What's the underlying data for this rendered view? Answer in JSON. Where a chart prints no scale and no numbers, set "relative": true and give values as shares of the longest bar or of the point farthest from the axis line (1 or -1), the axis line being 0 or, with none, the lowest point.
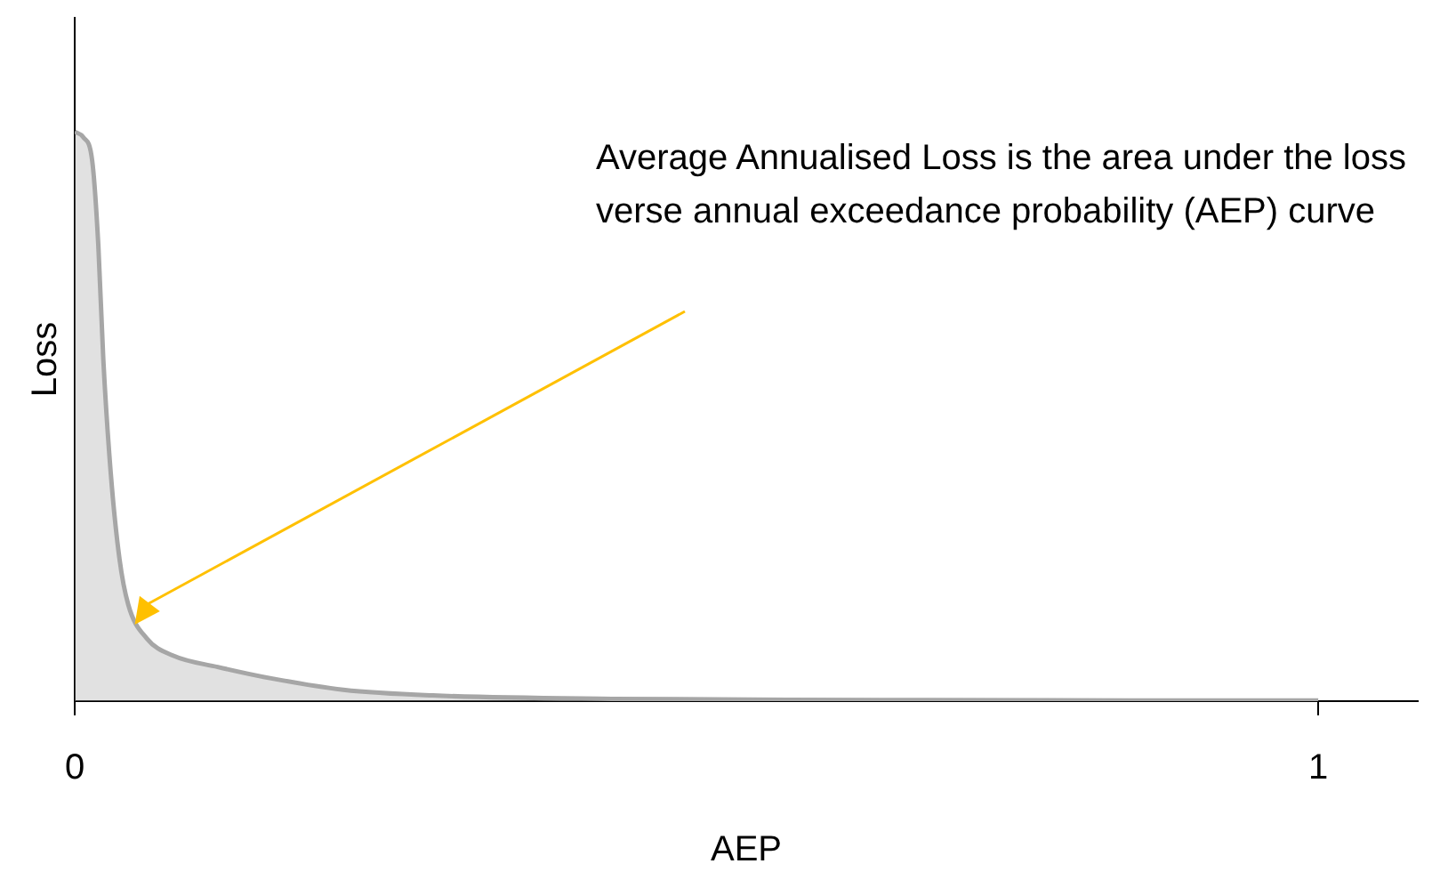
{
  "chart_data": {
    "type": "area",
    "xlabel": "AEP",
    "ylabel": "Loss",
    "relative": true,
    "annotations": [
      "Average Annualised Loss is the area under the loss verse annual exceedance probability (AEP) curve"
    ],
    "x": [
      0,
      0.007,
      0.014,
      0.019,
      0.023,
      0.029,
      0.036,
      0.043,
      0.058,
      0.079,
      0.115,
      0.158,
      0.216,
      0.288,
      0.432,
      0.647,
      1.0
    ],
    "series": [
      {
        "color": "#a6a6a6",
        "values": [
          1.0,
          0.99,
          0.95,
          0.8,
          0.6,
          0.4,
          0.25,
          0.17,
          0.11,
          0.08,
          0.06,
          0.04,
          0.02,
          0.01,
          0.004,
          0.002,
          0.001
        ]
      }
    ],
    "xlim": [
      0,
      1.08
    ],
    "xticks": [
      0,
      1
    ],
    "grid": false,
    "legend": false,
    "marker": "none",
    "line_style": "solid"
  }
}
